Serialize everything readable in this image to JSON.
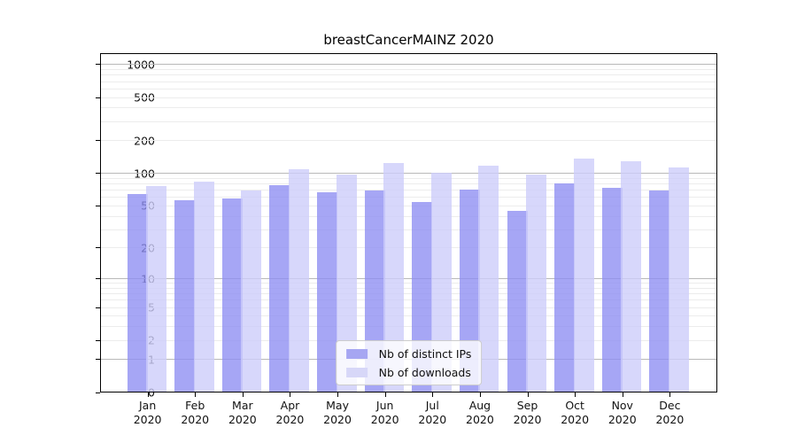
{
  "title": "breastCancerMAINZ 2020",
  "legend": {
    "items": [
      {
        "label": "Nb of distinct IPs",
        "color": "#a6a6f2"
      },
      {
        "label": "Nb of downloads",
        "color": "#d7d7f8"
      }
    ]
  },
  "axes": {
    "y_tick_labels": [
      "0",
      "1",
      "2",
      "5",
      "10",
      "20",
      "50",
      "100",
      "200",
      "500",
      "1000"
    ],
    "x_month_labels": [
      "Jan",
      "Feb",
      "Mar",
      "Apr",
      "May",
      "Jun",
      "Jul",
      "Aug",
      "Sep",
      "Oct",
      "Nov",
      "Dec"
    ],
    "x_year_label": "2020"
  },
  "colors": {
    "bar_dark_fill": "rgba(141,141,242,0.78)",
    "bar_light_fill": "rgba(205,205,250,0.8)",
    "bar_dark_flat": "#a6a6f2",
    "bar_light_flat": "#d7d7f8",
    "grid_minor": "#ececec",
    "grid_major": "#b9b9b9",
    "spine": "#000000"
  },
  "chart_data": {
    "type": "bar",
    "title": "breastCancerMAINZ 2020",
    "categories": [
      "Jan 2020",
      "Feb 2020",
      "Mar 2020",
      "Apr 2020",
      "May 2020",
      "Jun 2020",
      "Jul 2020",
      "Aug 2020",
      "Sep 2020",
      "Oct 2020",
      "Nov 2020",
      "Dec 2020"
    ],
    "series": [
      {
        "name": "Nb of distinct IPs",
        "color": "#a6a6f2",
        "values": [
          65,
          56,
          59,
          78,
          67,
          70,
          54,
          71,
          45,
          81,
          74,
          69
        ]
      },
      {
        "name": "Nb of downloads",
        "color": "#d7d7f8",
        "values": [
          76,
          84,
          70,
          110,
          97,
          126,
          101,
          118,
          97,
          137,
          130,
          114
        ]
      }
    ],
    "xlabel": "",
    "ylabel": "",
    "y_scale": "log1p (0 at baseline, logarithmic above)",
    "y_ticks": [
      0,
      1,
      2,
      5,
      10,
      20,
      50,
      100,
      200,
      500,
      1000
    ],
    "y_minor_gridlines": [
      2,
      3,
      4,
      5,
      6,
      7,
      8,
      9,
      20,
      30,
      40,
      50,
      60,
      70,
      80,
      90,
      200,
      300,
      400,
      500,
      600,
      700,
      800,
      900
    ],
    "y_major_gridlines": [
      1,
      10,
      100,
      1000
    ],
    "ylim": [
      0,
      1276
    ],
    "grid": "horizontal only",
    "legend_position": "lower center"
  }
}
